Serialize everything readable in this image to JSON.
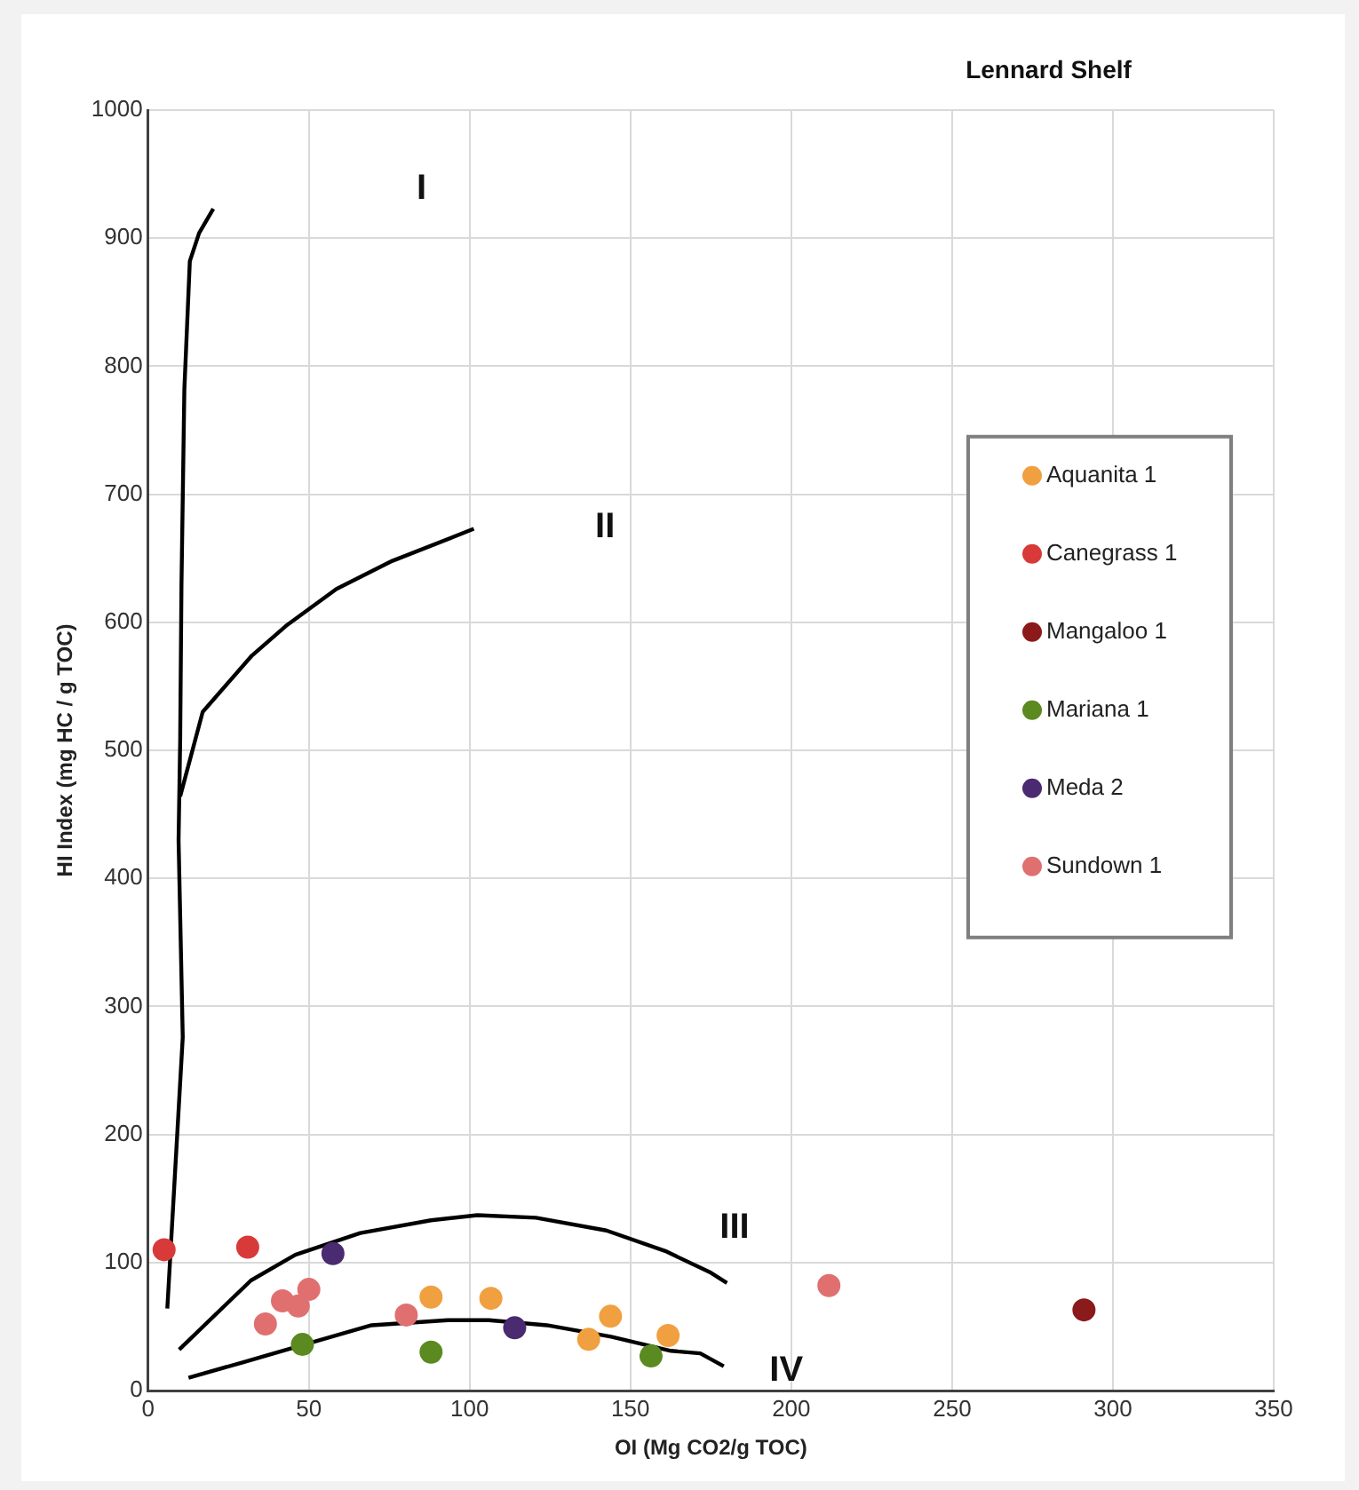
{
  "chart_data": {
    "type": "scatter",
    "title": "Lennard Shelf",
    "xlabel": "OI (Mg CO2/g TOC)",
    "ylabel": "HI Index (mg HC / g TOC)",
    "xlim": [
      0,
      350
    ],
    "xticks": [
      0,
      50,
      100,
      150,
      200,
      250,
      300,
      350
    ],
    "ylim": [
      0,
      1000
    ],
    "yticks": [
      0,
      100,
      200,
      300,
      400,
      500,
      600,
      700,
      800,
      900,
      1000
    ],
    "grid": true,
    "legend": "right",
    "marker": "circle",
    "annotations": [
      "I",
      "II",
      "III",
      "IV"
    ],
    "series": [
      {
        "type": "line",
        "marker": "none",
        "color": "#000000",
        "x": [
          6,
          10.8,
          9.5,
          10,
          10.4,
          11.3,
          13,
          15.9,
          20.3
        ],
        "values": [
          64,
          276,
          430,
          508,
          629,
          782,
          882,
          904,
          923
        ]
      },
      {
        "type": "line",
        "marker": "none",
        "color": "#000000",
        "x": [
          10,
          17,
          32.3,
          43.3,
          58.6,
          76,
          101.3
        ],
        "values": [
          464,
          530,
          574,
          598,
          626,
          648,
          673
        ]
      },
      {
        "type": "line",
        "marker": "none",
        "color": "#000000",
        "x": [
          9.7,
          32,
          45.8,
          66,
          88,
          102.4,
          120.6,
          142.5,
          160.8,
          175,
          180
        ],
        "values": [
          32,
          86,
          106,
          123,
          133,
          137,
          135,
          125,
          109,
          92,
          84
        ]
      },
      {
        "type": "line",
        "marker": "none",
        "color": "#000000",
        "x": [
          12.6,
          29.4,
          69.5,
          93.2,
          106,
          124,
          144,
          162.6,
          171.7,
          179
        ],
        "values": [
          10,
          22,
          51,
          55,
          55,
          51,
          42,
          31,
          29,
          19
        ]
      },
      {
        "name": "Aquanita 1",
        "color": "#f0a040",
        "x": [
          88,
          106.6,
          143.8,
          137,
          161.7
        ],
        "values": [
          73,
          72,
          58,
          40,
          43
        ]
      },
      {
        "name": "Canegrass 1",
        "color": "#d83a3a",
        "x": [
          5,
          31
        ],
        "values": [
          110,
          112
        ]
      },
      {
        "name": "Mangaloo 1",
        "color": "#8b1a1a",
        "x": [
          291
        ],
        "values": [
          63
        ]
      },
      {
        "name": "Mariana 1",
        "color": "#5a8a20",
        "x": [
          48,
          88,
          156.4
        ],
        "values": [
          36,
          30,
          27
        ]
      },
      {
        "name": "Meda 2",
        "color": "#4a2a70",
        "x": [
          57.5,
          114
        ],
        "values": [
          107,
          49
        ]
      },
      {
        "name": "Sundown 1",
        "color": "#e07070",
        "x": [
          41.8,
          50,
          46.7,
          36.5,
          80.3,
          211.7
        ],
        "values": [
          70,
          79,
          66,
          52,
          59,
          82
        ]
      }
    ]
  }
}
